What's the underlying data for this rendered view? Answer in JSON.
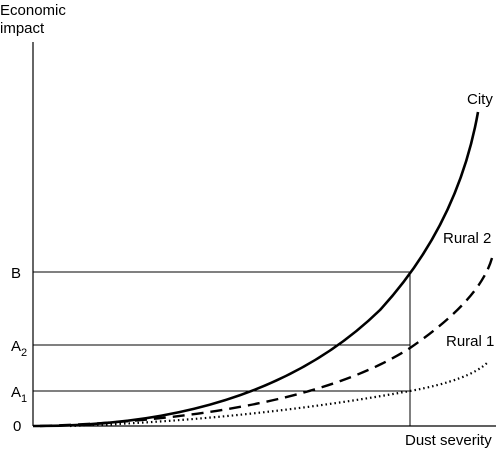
{
  "chart_data": {
    "type": "line",
    "axes": {
      "ylabel_line1": "Economic",
      "ylabel_line2": "impact",
      "xlabel": "Dust severity",
      "origin_label": "0"
    },
    "y_markers": [
      {
        "id": "B",
        "base": "B",
        "sub": ""
      },
      {
        "id": "A2",
        "base": "A",
        "sub": "2"
      },
      {
        "id": "A1",
        "base": "A",
        "sub": "1"
      }
    ],
    "series": [
      {
        "name": "City",
        "style": "solid"
      },
      {
        "name": "Rural 2",
        "style": "dashed"
      },
      {
        "name": "Rural 1",
        "style": "dotted"
      }
    ],
    "grid": false,
    "legend": "labels at curve ends",
    "colors": {
      "ink": "#000000",
      "background": "#ffffff"
    }
  }
}
